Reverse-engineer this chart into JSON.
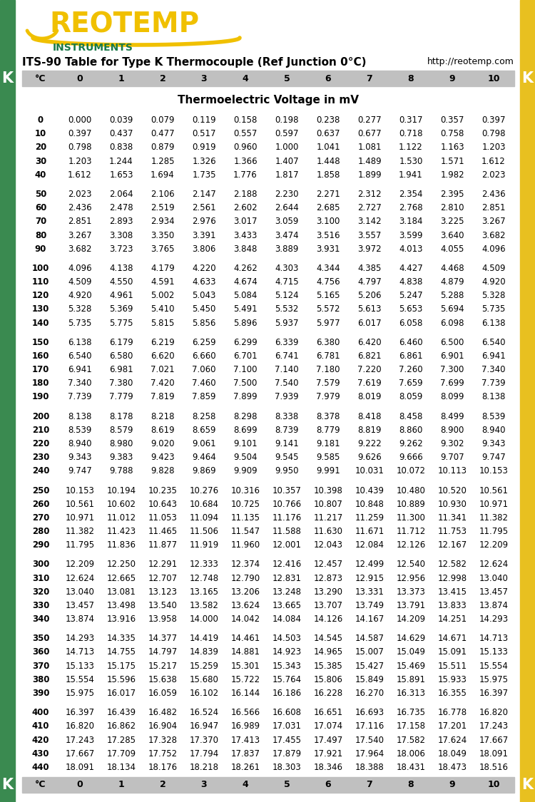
{
  "title": "ITS-90 Table for Type K Thermocouple (Ref Junction 0°C)",
  "url": "http://reotemp.com",
  "subtitle": "Thermoelectric Voltage in mV",
  "col_header": [
    "°C",
    "0",
    "1",
    "2",
    "3",
    "4",
    "5",
    "6",
    "7",
    "8",
    "9",
    "10"
  ],
  "table_data": [
    [
      0,
      0.0,
      0.039,
      0.079,
      0.119,
      0.158,
      0.198,
      0.238,
      0.277,
      0.317,
      0.357,
      0.397
    ],
    [
      10,
      0.397,
      0.437,
      0.477,
      0.517,
      0.557,
      0.597,
      0.637,
      0.677,
      0.718,
      0.758,
      0.798
    ],
    [
      20,
      0.798,
      0.838,
      0.879,
      0.919,
      0.96,
      1.0,
      1.041,
      1.081,
      1.122,
      1.163,
      1.203
    ],
    [
      30,
      1.203,
      1.244,
      1.285,
      1.326,
      1.366,
      1.407,
      1.448,
      1.489,
      1.53,
      1.571,
      1.612
    ],
    [
      40,
      1.612,
      1.653,
      1.694,
      1.735,
      1.776,
      1.817,
      1.858,
      1.899,
      1.941,
      1.982,
      2.023
    ],
    [
      50,
      2.023,
      2.064,
      2.106,
      2.147,
      2.188,
      2.23,
      2.271,
      2.312,
      2.354,
      2.395,
      2.436
    ],
    [
      60,
      2.436,
      2.478,
      2.519,
      2.561,
      2.602,
      2.644,
      2.685,
      2.727,
      2.768,
      2.81,
      2.851
    ],
    [
      70,
      2.851,
      2.893,
      2.934,
      2.976,
      3.017,
      3.059,
      3.1,
      3.142,
      3.184,
      3.225,
      3.267
    ],
    [
      80,
      3.267,
      3.308,
      3.35,
      3.391,
      3.433,
      3.474,
      3.516,
      3.557,
      3.599,
      3.64,
      3.682
    ],
    [
      90,
      3.682,
      3.723,
      3.765,
      3.806,
      3.848,
      3.889,
      3.931,
      3.972,
      4.013,
      4.055,
      4.096
    ],
    [
      100,
      4.096,
      4.138,
      4.179,
      4.22,
      4.262,
      4.303,
      4.344,
      4.385,
      4.427,
      4.468,
      4.509
    ],
    [
      110,
      4.509,
      4.55,
      4.591,
      4.633,
      4.674,
      4.715,
      4.756,
      4.797,
      4.838,
      4.879,
      4.92
    ],
    [
      120,
      4.92,
      4.961,
      5.002,
      5.043,
      5.084,
      5.124,
      5.165,
      5.206,
      5.247,
      5.288,
      5.328
    ],
    [
      130,
      5.328,
      5.369,
      5.41,
      5.45,
      5.491,
      5.532,
      5.572,
      5.613,
      5.653,
      5.694,
      5.735
    ],
    [
      140,
      5.735,
      5.775,
      5.815,
      5.856,
      5.896,
      5.937,
      5.977,
      6.017,
      6.058,
      6.098,
      6.138
    ],
    [
      150,
      6.138,
      6.179,
      6.219,
      6.259,
      6.299,
      6.339,
      6.38,
      6.42,
      6.46,
      6.5,
      6.54
    ],
    [
      160,
      6.54,
      6.58,
      6.62,
      6.66,
      6.701,
      6.741,
      6.781,
      6.821,
      6.861,
      6.901,
      6.941
    ],
    [
      170,
      6.941,
      6.981,
      7.021,
      7.06,
      7.1,
      7.14,
      7.18,
      7.22,
      7.26,
      7.3,
      7.34
    ],
    [
      180,
      7.34,
      7.38,
      7.42,
      7.46,
      7.5,
      7.54,
      7.579,
      7.619,
      7.659,
      7.699,
      7.739
    ],
    [
      190,
      7.739,
      7.779,
      7.819,
      7.859,
      7.899,
      7.939,
      7.979,
      8.019,
      8.059,
      8.099,
      8.138
    ],
    [
      200,
      8.138,
      8.178,
      8.218,
      8.258,
      8.298,
      8.338,
      8.378,
      8.418,
      8.458,
      8.499,
      8.539
    ],
    [
      210,
      8.539,
      8.579,
      8.619,
      8.659,
      8.699,
      8.739,
      8.779,
      8.819,
      8.86,
      8.9,
      8.94
    ],
    [
      220,
      8.94,
      8.98,
      9.02,
      9.061,
      9.101,
      9.141,
      9.181,
      9.222,
      9.262,
      9.302,
      9.343
    ],
    [
      230,
      9.343,
      9.383,
      9.423,
      9.464,
      9.504,
      9.545,
      9.585,
      9.626,
      9.666,
      9.707,
      9.747
    ],
    [
      240,
      9.747,
      9.788,
      9.828,
      9.869,
      9.909,
      9.95,
      9.991,
      10.031,
      10.072,
      10.113,
      10.153
    ],
    [
      250,
      10.153,
      10.194,
      10.235,
      10.276,
      10.316,
      10.357,
      10.398,
      10.439,
      10.48,
      10.52,
      10.561
    ],
    [
      260,
      10.561,
      10.602,
      10.643,
      10.684,
      10.725,
      10.766,
      10.807,
      10.848,
      10.889,
      10.93,
      10.971
    ],
    [
      270,
      10.971,
      11.012,
      11.053,
      11.094,
      11.135,
      11.176,
      11.217,
      11.259,
      11.3,
      11.341,
      11.382
    ],
    [
      280,
      11.382,
      11.423,
      11.465,
      11.506,
      11.547,
      11.588,
      11.63,
      11.671,
      11.712,
      11.753,
      11.795
    ],
    [
      290,
      11.795,
      11.836,
      11.877,
      11.919,
      11.96,
      12.001,
      12.043,
      12.084,
      12.126,
      12.167,
      12.209
    ],
    [
      300,
      12.209,
      12.25,
      12.291,
      12.333,
      12.374,
      12.416,
      12.457,
      12.499,
      12.54,
      12.582,
      12.624
    ],
    [
      310,
      12.624,
      12.665,
      12.707,
      12.748,
      12.79,
      12.831,
      12.873,
      12.915,
      12.956,
      12.998,
      13.04
    ],
    [
      320,
      13.04,
      13.081,
      13.123,
      13.165,
      13.206,
      13.248,
      13.29,
      13.331,
      13.373,
      13.415,
      13.457
    ],
    [
      330,
      13.457,
      13.498,
      13.54,
      13.582,
      13.624,
      13.665,
      13.707,
      13.749,
      13.791,
      13.833,
      13.874
    ],
    [
      340,
      13.874,
      13.916,
      13.958,
      14.0,
      14.042,
      14.084,
      14.126,
      14.167,
      14.209,
      14.251,
      14.293
    ],
    [
      350,
      14.293,
      14.335,
      14.377,
      14.419,
      14.461,
      14.503,
      14.545,
      14.587,
      14.629,
      14.671,
      14.713
    ],
    [
      360,
      14.713,
      14.755,
      14.797,
      14.839,
      14.881,
      14.923,
      14.965,
      15.007,
      15.049,
      15.091,
      15.133
    ],
    [
      370,
      15.133,
      15.175,
      15.217,
      15.259,
      15.301,
      15.343,
      15.385,
      15.427,
      15.469,
      15.511,
      15.554
    ],
    [
      380,
      15.554,
      15.596,
      15.638,
      15.68,
      15.722,
      15.764,
      15.806,
      15.849,
      15.891,
      15.933,
      15.975
    ],
    [
      390,
      15.975,
      16.017,
      16.059,
      16.102,
      16.144,
      16.186,
      16.228,
      16.27,
      16.313,
      16.355,
      16.397
    ],
    [
      400,
      16.397,
      16.439,
      16.482,
      16.524,
      16.566,
      16.608,
      16.651,
      16.693,
      16.735,
      16.778,
      16.82
    ],
    [
      410,
      16.82,
      16.862,
      16.904,
      16.947,
      16.989,
      17.031,
      17.074,
      17.116,
      17.158,
      17.201,
      17.243
    ],
    [
      420,
      17.243,
      17.285,
      17.328,
      17.37,
      17.413,
      17.455,
      17.497,
      17.54,
      17.582,
      17.624,
      17.667
    ],
    [
      430,
      17.667,
      17.709,
      17.752,
      17.794,
      17.837,
      17.879,
      17.921,
      17.964,
      18.006,
      18.049,
      18.091
    ],
    [
      440,
      18.091,
      18.134,
      18.176,
      18.218,
      18.261,
      18.303,
      18.346,
      18.388,
      18.431,
      18.473,
      18.516
    ]
  ],
  "colors": {
    "green_sidebar": "#3a8a50",
    "yellow_sidebar": "#e8c020",
    "header_bg": "#c0c0c0",
    "header_text": "#000000",
    "reotemp_text": "#f0c000",
    "instruments_text": "#1a7a4a",
    "title_text": "#000000",
    "url_text": "#000000",
    "subtitle_text": "#000000",
    "row_text": "#000000",
    "white_bg": "#ffffff"
  },
  "figsize": [
    7.5,
    11.25
  ],
  "dpi": 100
}
